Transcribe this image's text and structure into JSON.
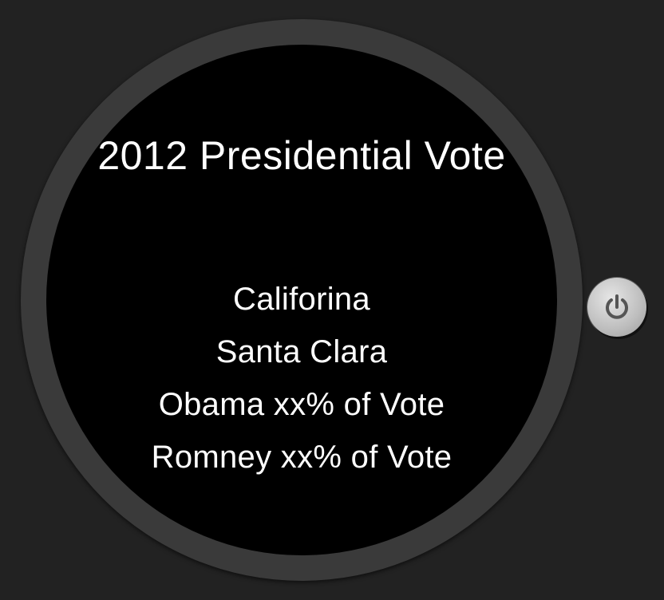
{
  "watch": {
    "title": "2012 Presidential Vote",
    "lines": [
      "Califorina",
      "Santa Clara",
      "Obama xx% of Vote",
      "Romney xx% of Vote"
    ]
  },
  "power_button": {
    "icon": "power-icon"
  },
  "colors": {
    "background": "#222222",
    "bezel": "#3a3a3a",
    "face": "#000000",
    "text": "#ffffff",
    "button": "#c8c8c8"
  }
}
